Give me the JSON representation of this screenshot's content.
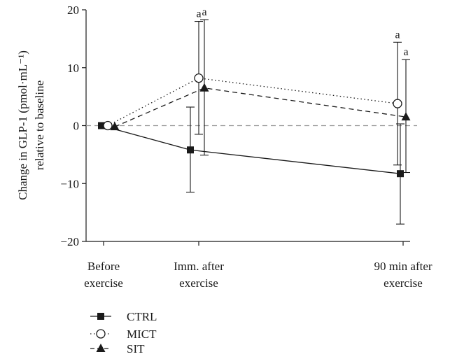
{
  "chart_data": {
    "type": "line",
    "title": "",
    "xlabel": "",
    "ylabel_line1": "Change in GLP-1 (pmol·mL⁻¹)",
    "ylabel_line2": "relative to baseline",
    "ylim": [
      -20,
      20
    ],
    "yticks": [
      -20,
      -10,
      0,
      10,
      20
    ],
    "categories": [
      {
        "line1": "Before",
        "line2": "exercise"
      },
      {
        "line1": "Imm. after",
        "line2": "exercise"
      },
      {
        "line1": "90 min after",
        "line2": "exercise"
      }
    ],
    "reference_line": 0,
    "legend_position": "bottom-left",
    "series": [
      {
        "name": "CTRL",
        "marker": "square",
        "line_style": "solid",
        "values": [
          0,
          -4.2,
          -8.3
        ],
        "error_low": [
          0,
          -11.5,
          -17.0
        ],
        "error_high": [
          0,
          3.2,
          0.3
        ],
        "annotations": [
          "",
          "",
          ""
        ]
      },
      {
        "name": "MICT",
        "marker": "circle-open",
        "line_style": "dotted",
        "values": [
          0,
          8.2,
          3.8
        ],
        "error_low": [
          0,
          -1.5,
          -6.8
        ],
        "error_high": [
          0,
          18.0,
          14.4
        ],
        "annotations": [
          "",
          "a",
          "a"
        ]
      },
      {
        "name": "SIT",
        "marker": "triangle",
        "line_style": "dashed",
        "values": [
          -0.2,
          6.5,
          1.5
        ],
        "error_low": [
          -0.2,
          -5.1,
          -8.1
        ],
        "error_high": [
          -0.2,
          18.3,
          11.4
        ],
        "annotations": [
          "",
          "a",
          "a"
        ]
      }
    ]
  }
}
